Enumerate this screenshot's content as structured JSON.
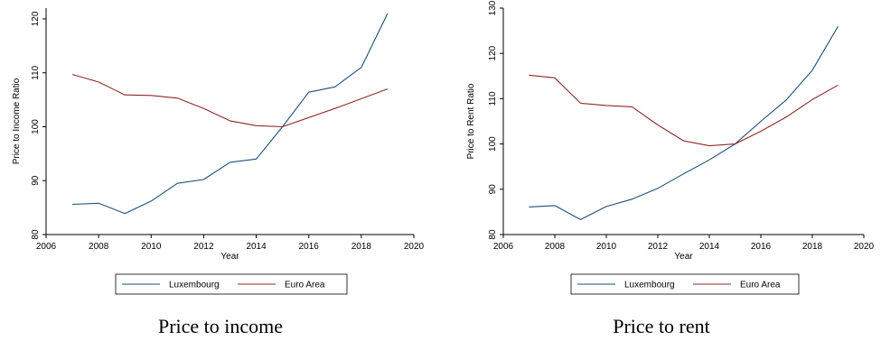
{
  "colors": {
    "luxembourg": "#1f4e79",
    "euro_area": "#8b2a2a"
  },
  "chart_data": [
    {
      "type": "line",
      "caption": "Price to income",
      "xlabel": "Year",
      "ylabel": "Price to Income Ratio",
      "xlim": [
        2006,
        2020
      ],
      "ylim": [
        80,
        122
      ],
      "xticks": [
        2006,
        2008,
        2010,
        2012,
        2014,
        2016,
        2018,
        2020
      ],
      "yticks": [
        80,
        90,
        100,
        110,
        120
      ],
      "legend_position": "bottom",
      "series": [
        {
          "name": "Luxembourg",
          "color_key": "luxembourg",
          "x": [
            2007,
            2008,
            2009,
            2010,
            2011,
            2012,
            2013,
            2014,
            2015,
            2016,
            2017,
            2018,
            2019
          ],
          "y": [
            85.6,
            85.8,
            83.9,
            86.2,
            89.5,
            90.2,
            93.4,
            94.0,
            100.0,
            106.4,
            107.4,
            111.0,
            121.0
          ]
        },
        {
          "name": "Euro Area",
          "color_key": "euro_area",
          "x": [
            2007,
            2008,
            2009,
            2010,
            2011,
            2012,
            2013,
            2014,
            2015,
            2016,
            2017,
            2018,
            2019
          ],
          "y": [
            109.7,
            108.3,
            105.9,
            105.8,
            105.3,
            103.4,
            101.1,
            100.2,
            100.0,
            101.7,
            103.4,
            105.2,
            107.0
          ]
        }
      ]
    },
    {
      "type": "line",
      "caption": "Price to rent",
      "xlabel": "Year",
      "ylabel": "Price to Rent Ratio",
      "xlim": [
        2006,
        2020
      ],
      "ylim": [
        80,
        130
      ],
      "xticks": [
        2006,
        2008,
        2010,
        2012,
        2014,
        2016,
        2018,
        2020
      ],
      "yticks": [
        80,
        90,
        100,
        110,
        120,
        130
      ],
      "legend_position": "bottom",
      "series": [
        {
          "name": "Luxembourg",
          "color_key": "luxembourg",
          "x": [
            2007,
            2008,
            2009,
            2010,
            2011,
            2012,
            2013,
            2014,
            2015,
            2016,
            2017,
            2018,
            2019
          ],
          "y": [
            86.1,
            86.4,
            83.3,
            86.2,
            87.8,
            90.2,
            93.4,
            96.5,
            100.0,
            105.0,
            109.8,
            116.3,
            126.0
          ]
        },
        {
          "name": "Euro Area",
          "color_key": "euro_area",
          "x": [
            2007,
            2008,
            2009,
            2010,
            2011,
            2012,
            2013,
            2014,
            2015,
            2016,
            2017,
            2018,
            2019
          ],
          "y": [
            115.2,
            114.6,
            109.0,
            108.5,
            108.2,
            104.2,
            100.7,
            99.6,
            100.0,
            102.8,
            106.0,
            109.8,
            113.0
          ]
        }
      ]
    }
  ]
}
